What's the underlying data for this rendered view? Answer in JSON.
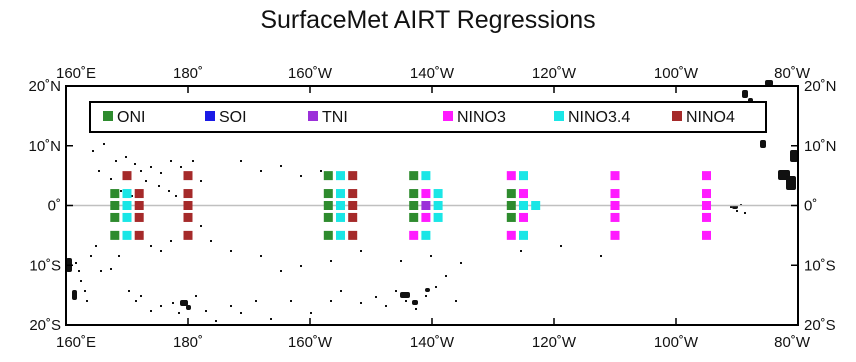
{
  "title": "SurfaceMet AIRT Regressions",
  "lon_ticks": [
    {
      "lon": 160,
      "label": "160˚E"
    },
    {
      "lon": 180,
      "label": "180˚"
    },
    {
      "lon": 200,
      "label": "160˚W"
    },
    {
      "lon": 220,
      "label": "140˚W"
    },
    {
      "lon": 240,
      "label": "120˚W"
    },
    {
      "lon": 260,
      "label": "100˚W"
    },
    {
      "lon": 280,
      "label": "80˚W"
    }
  ],
  "lat_ticks": [
    {
      "lat": 20,
      "label": "20˚N"
    },
    {
      "lat": 10,
      "label": "10˚N"
    },
    {
      "lat": 0,
      "label": "0˚"
    },
    {
      "lat": -10,
      "label": "10˚S"
    },
    {
      "lat": -20,
      "label": "20˚S"
    }
  ],
  "extent": {
    "lon_min": 160,
    "lon_max": 280,
    "lat_min": -20,
    "lat_max": 20
  },
  "legend": [
    {
      "id": "ONI",
      "label": "ONI",
      "color": "#2e8b2e"
    },
    {
      "id": "SOI",
      "label": "SOI",
      "color": "#1a1ae6"
    },
    {
      "id": "TNI",
      "label": "TNI",
      "color": "#9b30d9"
    },
    {
      "id": "NINO3",
      "label": "NINO3",
      "color": "#ff1aff"
    },
    {
      "id": "NINO34",
      "label": "NINO3.4",
      "color": "#1ae6e6"
    },
    {
      "id": "NINO4",
      "label": "NINO4",
      "color": "#a52a2a"
    }
  ],
  "stations": [
    {
      "lon": 180,
      "lat": 5,
      "idx": "NINO4"
    },
    {
      "lon": 180,
      "lat": 2,
      "idx": "NINO4"
    },
    {
      "lon": 180,
      "lat": 0,
      "idx": "NINO4"
    },
    {
      "lon": 180,
      "lat": -2,
      "idx": "NINO4"
    },
    {
      "lon": 180,
      "lat": -5,
      "idx": "NINO4"
    },
    {
      "lon": 170,
      "lat": 5,
      "idx": "NINO4"
    },
    {
      "lon": 168,
      "lat": 2,
      "idx": "ONI"
    },
    {
      "lon": 168,
      "lat": 0,
      "idx": "ONI"
    },
    {
      "lon": 168,
      "lat": -2,
      "idx": "ONI"
    },
    {
      "lon": 168,
      "lat": -5,
      "idx": "ONI"
    },
    {
      "lon": 170,
      "lat": 2,
      "idx": "NINO34"
    },
    {
      "lon": 170,
      "lat": 0,
      "idx": "NINO34"
    },
    {
      "lon": 170,
      "lat": -2,
      "idx": "NINO34"
    },
    {
      "lon": 170,
      "lat": -5,
      "idx": "NINO34"
    },
    {
      "lon": 172,
      "lat": 2,
      "idx": "NINO4"
    },
    {
      "lon": 172,
      "lat": 0,
      "idx": "NINO4"
    },
    {
      "lon": 172,
      "lat": -2,
      "idx": "NINO4"
    },
    {
      "lon": 172,
      "lat": -5,
      "idx": "NINO4"
    },
    {
      "lon": 157,
      "lat": 5,
      "idx": "ONI"
    },
    {
      "lon": 157,
      "lat": 2,
      "idx": "ONI"
    },
    {
      "lon": 157,
      "lat": 0,
      "idx": "ONI"
    },
    {
      "lon": 157,
      "lat": -2,
      "idx": "ONI"
    },
    {
      "lon": 157,
      "lat": -5,
      "idx": "ONI"
    },
    {
      "lon": 155,
      "lat": 5,
      "idx": "NINO34"
    },
    {
      "lon": 155,
      "lat": 2,
      "idx": "NINO34"
    },
    {
      "lon": 155,
      "lat": 0,
      "idx": "NINO34"
    },
    {
      "lon": 155,
      "lat": -2,
      "idx": "NINO34"
    },
    {
      "lon": 155,
      "lat": -5,
      "idx": "NINO34"
    },
    {
      "lon": 153,
      "lat": 5,
      "idx": "NINO4"
    },
    {
      "lon": 153,
      "lat": 2,
      "idx": "NINO4"
    },
    {
      "lon": 153,
      "lat": 0,
      "idx": "NINO4"
    },
    {
      "lon": 153,
      "lat": -2,
      "idx": "NINO4"
    },
    {
      "lon": 153,
      "lat": -5,
      "idx": "NINO4"
    },
    {
      "lon": 143,
      "lat": 5,
      "idx": "ONI"
    },
    {
      "lon": 143,
      "lat": 2,
      "idx": "ONI"
    },
    {
      "lon": 143,
      "lat": 0,
      "idx": "ONI"
    },
    {
      "lon": 143,
      "lat": -2,
      "idx": "ONI"
    },
    {
      "lon": 143,
      "lat": -5,
      "idx": "NINO3"
    },
    {
      "lon": 141,
      "lat": 5,
      "idx": "NINO34"
    },
    {
      "lon": 141,
      "lat": 2,
      "idx": "NINO3"
    },
    {
      "lon": 141,
      "lat": 0,
      "idx": "TNI"
    },
    {
      "lon": 141,
      "lat": -2,
      "idx": "NINO3"
    },
    {
      "lon": 141,
      "lat": -5,
      "idx": "NINO34"
    },
    {
      "lon": 139,
      "lat": 2,
      "idx": "NINO34"
    },
    {
      "lon": 139,
      "lat": 0,
      "idx": "NINO34"
    },
    {
      "lon": 139,
      "lat": -2,
      "idx": "NINO34"
    },
    {
      "lon": 127,
      "lat": 5,
      "idx": "NINO3"
    },
    {
      "lon": 127,
      "lat": 2,
      "idx": "ONI"
    },
    {
      "lon": 127,
      "lat": 0,
      "idx": "ONI"
    },
    {
      "lon": 127,
      "lat": -2,
      "idx": "ONI"
    },
    {
      "lon": 127,
      "lat": -5,
      "idx": "NINO3"
    },
    {
      "lon": 125,
      "lat": 5,
      "idx": "NINO34"
    },
    {
      "lon": 125,
      "lat": 2,
      "idx": "NINO3"
    },
    {
      "lon": 125,
      "lat": 0,
      "idx": "NINO34"
    },
    {
      "lon": 125,
      "lat": -2,
      "idx": "NINO3"
    },
    {
      "lon": 125,
      "lat": -5,
      "idx": "NINO34"
    },
    {
      "lon": 123,
      "lat": 0,
      "idx": "NINO34"
    },
    {
      "lon": 110,
      "lat": 5,
      "idx": "NINO3"
    },
    {
      "lon": 110,
      "lat": 2,
      "idx": "NINO3"
    },
    {
      "lon": 110,
      "lat": 0,
      "idx": "NINO3"
    },
    {
      "lon": 110,
      "lat": -2,
      "idx": "NINO3"
    },
    {
      "lon": 110,
      "lat": -5,
      "idx": "NINO3"
    },
    {
      "lon": 95,
      "lat": 5,
      "idx": "NINO3"
    },
    {
      "lon": 95,
      "lat": 2,
      "idx": "NINO3"
    },
    {
      "lon": 95,
      "lat": 0,
      "idx": "NINO3"
    },
    {
      "lon": 95,
      "lat": -2,
      "idx": "NINO3"
    },
    {
      "lon": 95,
      "lat": -5,
      "idx": "NINO3"
    }
  ],
  "grid": {
    "equator_line": true
  },
  "colors": {
    "frame": "#000000",
    "equator": "#c0c0c0",
    "land": "#111111"
  }
}
